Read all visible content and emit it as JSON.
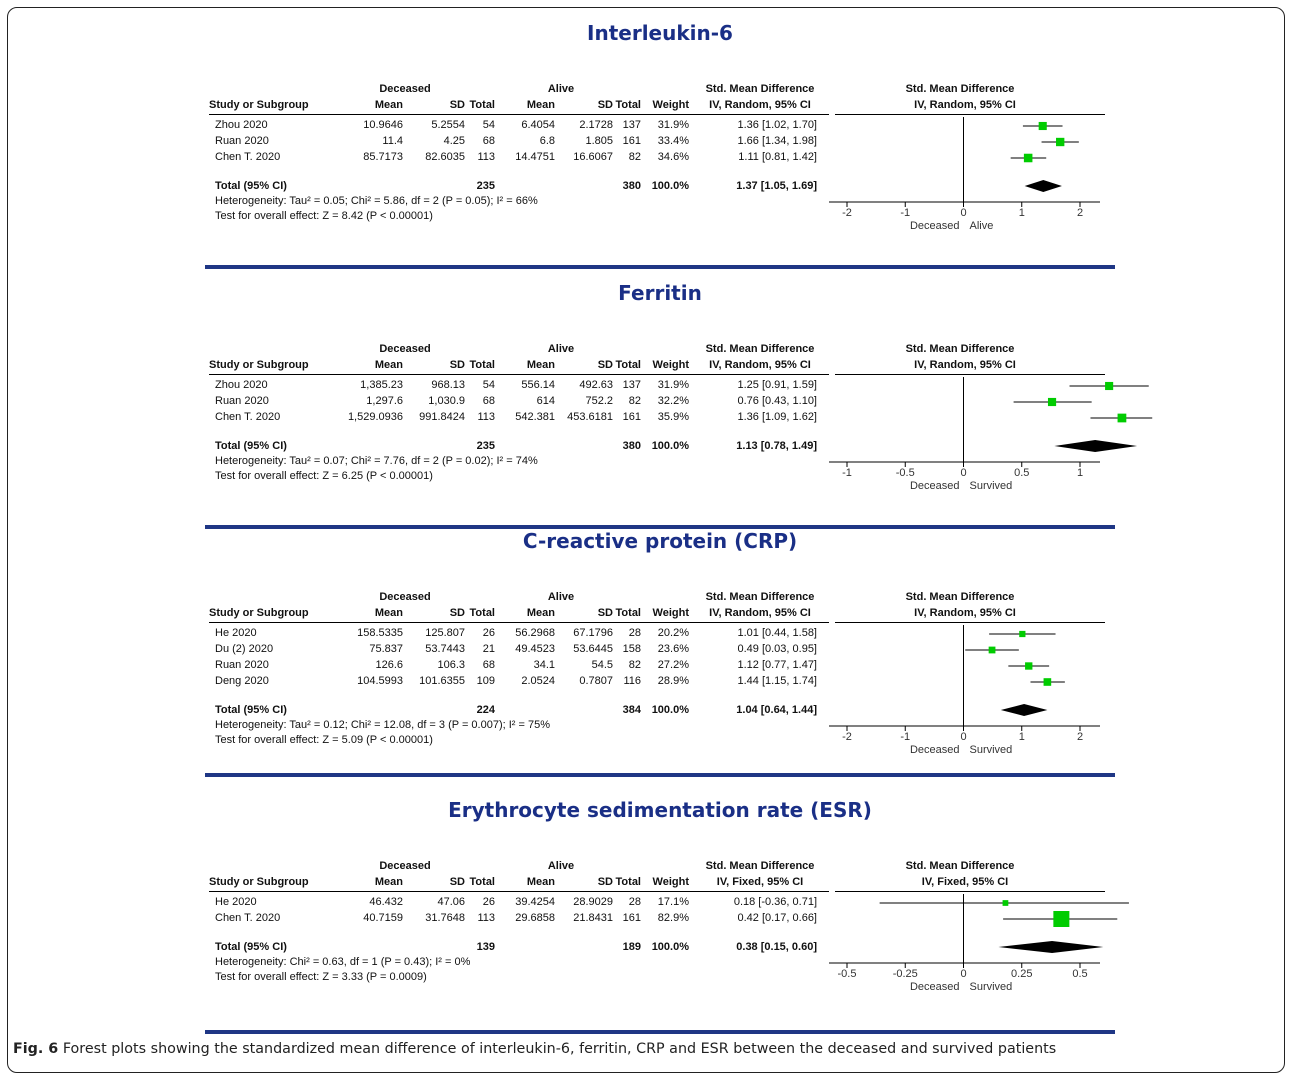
{
  "caption": {
    "label": "Fig. 6",
    "text": "Forest plots showing the standardized mean difference of interleukin-6, ferritin, CRP and ESR between the deceased and survived patients"
  },
  "colors": {
    "title": "#1a2f86",
    "divider": "#1f3685",
    "marker": "#00cc00",
    "diamond": "#000000"
  },
  "header": {
    "study": "Study or Subgroup",
    "mean": "Mean",
    "sd": "SD",
    "total": "Total",
    "weight": "Weight",
    "smd": "Std. Mean Difference"
  },
  "chart_data": [
    {
      "type": "forest",
      "title": "Interleukin-6",
      "group1": "Deceased",
      "group2": "Alive",
      "method": "IV, Random, 95% CI",
      "studies": [
        {
          "name": "Zhou 2020",
          "m1": "10.9646",
          "sd1": "5.2554",
          "n1": "54",
          "m2": "6.4054",
          "sd2": "2.1728",
          "n2": "137",
          "weight": "31.9%",
          "ci": "1.36 [1.02, 1.70]",
          "est": 1.36,
          "lo": 1.02,
          "hi": 1.7
        },
        {
          "name": "Ruan 2020",
          "m1": "11.4",
          "sd1": "4.25",
          "n1": "68",
          "m2": "6.8",
          "sd2": "1.805",
          "n2": "161",
          "weight": "33.4%",
          "ci": "1.66 [1.34, 1.98]",
          "est": 1.66,
          "lo": 1.34,
          "hi": 1.98
        },
        {
          "name": "Chen T. 2020",
          "m1": "85.7173",
          "sd1": "82.6035",
          "n1": "113",
          "m2": "14.4751",
          "sd2": "16.6067",
          "n2": "82",
          "weight": "34.6%",
          "ci": "1.11 [0.81, 1.42]",
          "est": 1.11,
          "lo": 0.81,
          "hi": 1.42
        }
      ],
      "total": {
        "label": "Total (95% CI)",
        "n1": "235",
        "n2": "380",
        "weight": "100.0%",
        "ci": "1.37 [1.05, 1.69]",
        "est": 1.37,
        "lo": 1.05,
        "hi": 1.69
      },
      "heterogeneity": "Heterogeneity: Tau² = 0.05; Chi² = 5.86, df = 2 (P = 0.05); I² = 66%",
      "overall": "Test for overall effect: Z = 8.42 (P < 0.00001)",
      "axis": {
        "min": -2,
        "max": 2,
        "ticks": [
          -2,
          -1,
          0,
          1,
          2
        ],
        "tick_labels": [
          "-2",
          "-1",
          "0",
          "1",
          "2"
        ],
        "left_label": "Deceased",
        "right_label": "Alive"
      }
    },
    {
      "type": "forest",
      "title": "Ferritin",
      "group1": "Deceased",
      "group2": "Alive",
      "method": "IV, Random, 95% CI",
      "studies": [
        {
          "name": "Zhou 2020",
          "m1": "1,385.23",
          "sd1": "968.13",
          "n1": "54",
          "m2": "556.14",
          "sd2": "492.63",
          "n2": "137",
          "weight": "31.9%",
          "ci": "1.25 [0.91, 1.59]",
          "est": 1.25,
          "lo": 0.91,
          "hi": 1.59
        },
        {
          "name": "Ruan 2020",
          "m1": "1,297.6",
          "sd1": "1,030.9",
          "n1": "68",
          "m2": "614",
          "sd2": "752.2",
          "n2": "82",
          "weight": "32.2%",
          "ci": "0.76 [0.43, 1.10]",
          "est": 0.76,
          "lo": 0.43,
          "hi": 1.1
        },
        {
          "name": "Chen T. 2020",
          "m1": "1,529.0936",
          "sd1": "991.8424",
          "n1": "113",
          "m2": "542.381",
          "sd2": "453.6181",
          "n2": "161",
          "weight": "35.9%",
          "ci": "1.36 [1.09, 1.62]",
          "est": 1.36,
          "lo": 1.09,
          "hi": 1.62
        }
      ],
      "total": {
        "label": "Total (95% CI)",
        "n1": "235",
        "n2": "380",
        "weight": "100.0%",
        "ci": "1.13 [0.78, 1.49]",
        "est": 1.13,
        "lo": 0.78,
        "hi": 1.49
      },
      "heterogeneity": "Heterogeneity: Tau² = 0.07; Chi² = 7.76, df = 2 (P = 0.02); I² = 74%",
      "overall": "Test for overall effect: Z = 6.25 (P < 0.00001)",
      "axis": {
        "min": -1,
        "max": 1,
        "ticks": [
          -1,
          -0.5,
          0,
          0.5,
          1
        ],
        "tick_labels": [
          "-1",
          "-0.5",
          "0",
          "0.5",
          "1"
        ],
        "left_label": "Deceased",
        "right_label": "Survived"
      }
    },
    {
      "type": "forest",
      "title": "C-reactive protein (CRP)",
      "group1": "Deceased",
      "group2": "Alive",
      "method": "IV, Random, 95% CI",
      "studies": [
        {
          "name": "He 2020",
          "m1": "158.5335",
          "sd1": "125.807",
          "n1": "26",
          "m2": "56.2968",
          "sd2": "67.1796",
          "n2": "28",
          "weight": "20.2%",
          "ci": "1.01 [0.44, 1.58]",
          "est": 1.01,
          "lo": 0.44,
          "hi": 1.58
        },
        {
          "name": "Du (2) 2020",
          "m1": "75.837",
          "sd1": "53.7443",
          "n1": "21",
          "m2": "49.4523",
          "sd2": "53.6445",
          "n2": "158",
          "weight": "23.6%",
          "ci": "0.49 [0.03, 0.95]",
          "est": 0.49,
          "lo": 0.03,
          "hi": 0.95
        },
        {
          "name": "Ruan 2020",
          "m1": "126.6",
          "sd1": "106.3",
          "n1": "68",
          "m2": "34.1",
          "sd2": "54.5",
          "n2": "82",
          "weight": "27.2%",
          "ci": "1.12 [0.77, 1.47]",
          "est": 1.12,
          "lo": 0.77,
          "hi": 1.47
        },
        {
          "name": "Deng 2020",
          "m1": "104.5993",
          "sd1": "101.6355",
          "n1": "109",
          "m2": "2.0524",
          "sd2": "0.7807",
          "n2": "116",
          "weight": "28.9%",
          "ci": "1.44 [1.15, 1.74]",
          "est": 1.44,
          "lo": 1.15,
          "hi": 1.74
        }
      ],
      "total": {
        "label": "Total (95% CI)",
        "n1": "224",
        "n2": "384",
        "weight": "100.0%",
        "ci": "1.04 [0.64, 1.44]",
        "est": 1.04,
        "lo": 0.64,
        "hi": 1.44
      },
      "heterogeneity": "Heterogeneity: Tau² = 0.12; Chi² = 12.08, df = 3 (P = 0.007); I² = 75%",
      "overall": "Test for overall effect: Z = 5.09 (P < 0.00001)",
      "axis": {
        "min": -2,
        "max": 2,
        "ticks": [
          -2,
          -1,
          0,
          1,
          2
        ],
        "tick_labels": [
          "-2",
          "-1",
          "0",
          "1",
          "2"
        ],
        "left_label": "Deceased",
        "right_label": "Survived"
      }
    },
    {
      "type": "forest",
      "title": "Erythrocyte sedimentation rate (ESR)",
      "group1": "Deceased",
      "group2": "Alive",
      "method": "IV, Fixed, 95% CI",
      "studies": [
        {
          "name": "He 2020",
          "m1": "46.432",
          "sd1": "47.06",
          "n1": "26",
          "m2": "39.4254",
          "sd2": "28.9029",
          "n2": "28",
          "weight": "17.1%",
          "ci": "0.18 [-0.36, 0.71]",
          "est": 0.18,
          "lo": -0.36,
          "hi": 0.71
        },
        {
          "name": "Chen T. 2020",
          "m1": "40.7159",
          "sd1": "31.7648",
          "n1": "113",
          "m2": "29.6858",
          "sd2": "21.8431",
          "n2": "161",
          "weight": "82.9%",
          "ci": "0.42 [0.17, 0.66]",
          "est": 0.42,
          "lo": 0.17,
          "hi": 0.66
        }
      ],
      "total": {
        "label": "Total (95% CI)",
        "n1": "139",
        "n2": "189",
        "weight": "100.0%",
        "ci": "0.38 [0.15, 0.60]",
        "est": 0.38,
        "lo": 0.15,
        "hi": 0.6
      },
      "heterogeneity": "Heterogeneity: Chi² = 0.63, df = 1 (P = 0.43); I² = 0%",
      "overall": "Test for overall effect: Z = 3.33 (P = 0.0009)",
      "axis": {
        "min": -0.5,
        "max": 0.5,
        "ticks": [
          -0.5,
          -0.25,
          0,
          0.25,
          0.5
        ],
        "tick_labels": [
          "-0.5",
          "-0.25",
          "0",
          "0.25",
          "0.5"
        ],
        "left_label": "Deceased",
        "right_label": "Survived"
      }
    }
  ]
}
